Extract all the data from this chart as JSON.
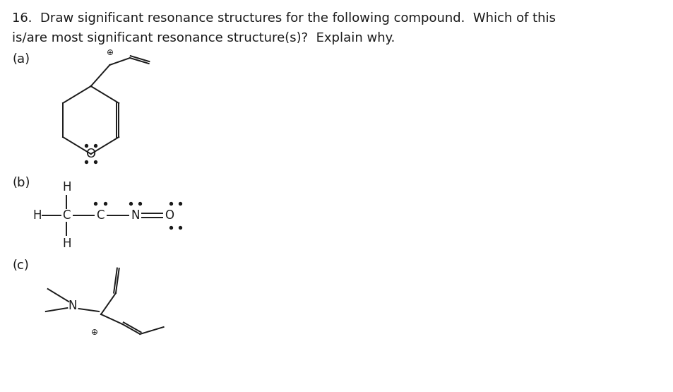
{
  "title_line1": "16.  Draw significant resonance structures for the following compound.  Which of this",
  "title_line2": "is/are most significant resonance structure(s)?  Explain why.",
  "label_a": "(a)",
  "label_b": "(b)",
  "label_c": "(c)",
  "text_color": "#1a1a1a",
  "bg_color": "#ffffff",
  "font_size_title": 13,
  "font_size_label": 13,
  "font_size_atom": 12
}
